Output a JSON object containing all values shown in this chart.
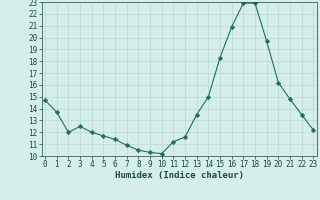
{
  "xlabel": "Humidex (Indice chaleur)",
  "x": [
    0,
    1,
    2,
    3,
    4,
    5,
    6,
    7,
    8,
    9,
    10,
    11,
    12,
    13,
    14,
    15,
    16,
    17,
    18,
    19,
    20,
    21,
    22,
    23
  ],
  "y": [
    14.7,
    13.7,
    12.0,
    12.5,
    12.0,
    11.7,
    11.4,
    10.9,
    10.5,
    10.3,
    10.2,
    11.2,
    11.6,
    13.5,
    15.0,
    18.3,
    20.9,
    22.9,
    22.9,
    19.7,
    16.2,
    14.8,
    13.5,
    12.2
  ],
  "line_color": "#1f6f5c",
  "marker": "D",
  "marker_size": 2.2,
  "bg_color": "#d6eeea",
  "grid_color": "#b8d8d2",
  "ylim": [
    10,
    23
  ],
  "xlim_min": -0.3,
  "xlim_max": 23.3,
  "yticks": [
    10,
    11,
    12,
    13,
    14,
    15,
    16,
    17,
    18,
    19,
    20,
    21,
    22,
    23
  ],
  "xticks": [
    0,
    1,
    2,
    3,
    4,
    5,
    6,
    7,
    8,
    9,
    10,
    11,
    12,
    13,
    14,
    15,
    16,
    17,
    18,
    19,
    20,
    21,
    22,
    23
  ],
  "tick_fontsize": 5.5,
  "xlabel_fontsize": 6.5,
  "axis_label_color": "#1a4a40"
}
